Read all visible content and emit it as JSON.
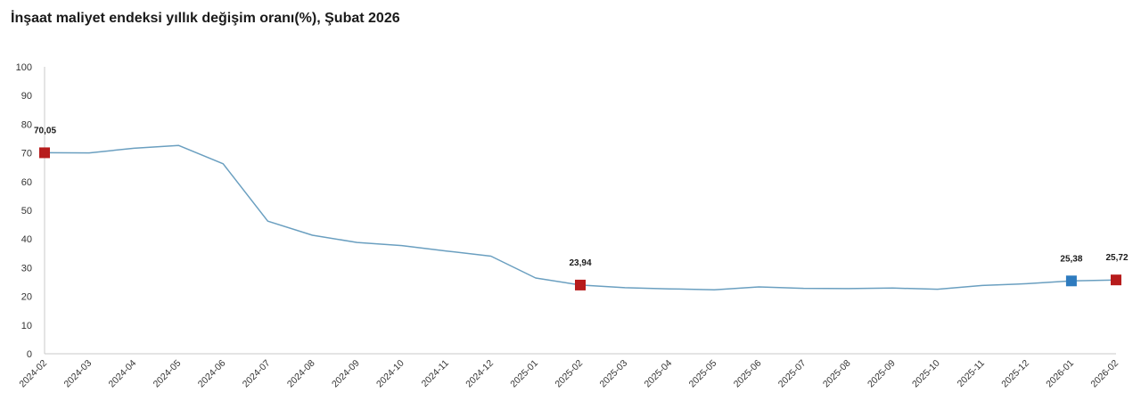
{
  "chart_data": {
    "type": "line",
    "title": "İnşaat maliyet endeksi yıllık değişim oranı(%), Şubat 2026",
    "xlabel": "",
    "ylabel": "",
    "ylim": [
      0,
      100
    ],
    "yticks": [
      0,
      10,
      20,
      30,
      40,
      50,
      60,
      70,
      80,
      90,
      100
    ],
    "grid": false,
    "categories": [
      "2024-02",
      "2024-03",
      "2024-04",
      "2024-05",
      "2024-06",
      "2024-07",
      "2024-08",
      "2024-09",
      "2024-10",
      "2024-11",
      "2024-12",
      "2025-01",
      "2025-02",
      "2025-03",
      "2025-04",
      "2025-05",
      "2025-06",
      "2025-07",
      "2025-08",
      "2025-09",
      "2025-10",
      "2025-11",
      "2025-12",
      "2026-01",
      "2026-02"
    ],
    "series": [
      {
        "values": [
          70.05,
          70.0,
          71.6,
          72.6,
          66.2,
          46.2,
          41.3,
          38.8,
          37.7,
          35.8,
          34.0,
          26.4,
          23.94,
          23.0,
          22.6,
          22.3,
          23.3,
          22.8,
          22.7,
          22.9,
          22.5,
          23.8,
          24.4,
          25.38,
          25.72
        ],
        "color": "#6a9fc0"
      }
    ],
    "annotations": [
      {
        "category": "2024-02",
        "value": 70.05,
        "label": "70,05",
        "color": "#b71c1c"
      },
      {
        "category": "2025-02",
        "value": 23.94,
        "label": "23,94",
        "color": "#b71c1c"
      },
      {
        "category": "2026-01",
        "value": 25.38,
        "label": "25,38",
        "color": "#2e7bbf"
      },
      {
        "category": "2026-02",
        "value": 25.72,
        "label": "25,72",
        "color": "#b71c1c"
      }
    ]
  }
}
